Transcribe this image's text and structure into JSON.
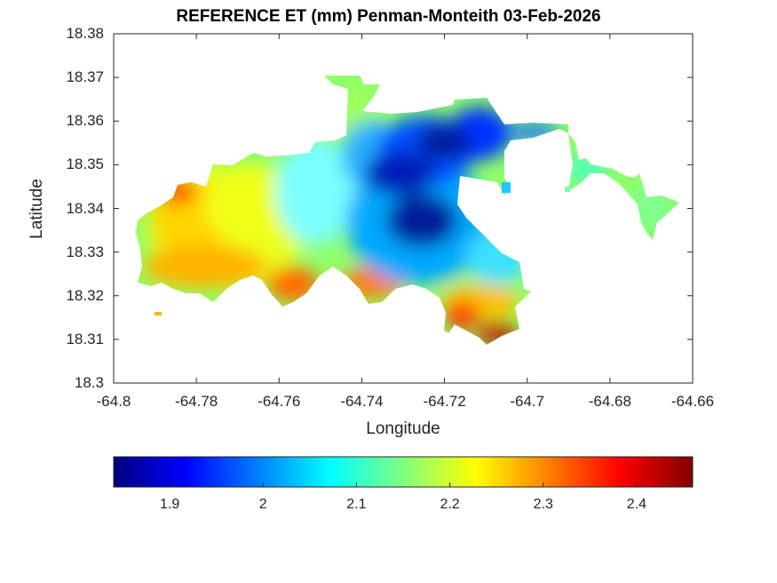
{
  "chart_data": {
    "type": "heatmap",
    "title": "REFERENCE ET (mm) Penman-Monteith 03-Feb-2026",
    "xlabel": "Longitude",
    "ylabel": "Latitude",
    "xlim": [
      -64.8,
      -64.66
    ],
    "ylim": [
      18.3,
      18.38
    ],
    "x_ticks": [
      "-64.8",
      "-64.78",
      "-64.76",
      "-64.74",
      "-64.72",
      "-64.7",
      "-64.68",
      "-64.66"
    ],
    "y_ticks": [
      "18.38",
      "18.37",
      "18.36",
      "18.35",
      "18.34",
      "18.33",
      "18.32",
      "18.31",
      "18.3"
    ],
    "colorbar": {
      "colormap": "jet",
      "range": [
        1.84,
        2.46
      ],
      "orientation": "horizontal",
      "ticks": [
        "1.9",
        "2",
        "2.1",
        "2.2",
        "2.3",
        "2.4"
      ],
      "tick_values": [
        1.9,
        2.0,
        2.1,
        2.2,
        2.3,
        2.4
      ]
    },
    "colormap_stops": [
      "#00007f",
      "#0000ff",
      "#00ffff",
      "#ffff00",
      "#ff0000",
      "#7f0000"
    ],
    "grid": false,
    "box": true
  }
}
